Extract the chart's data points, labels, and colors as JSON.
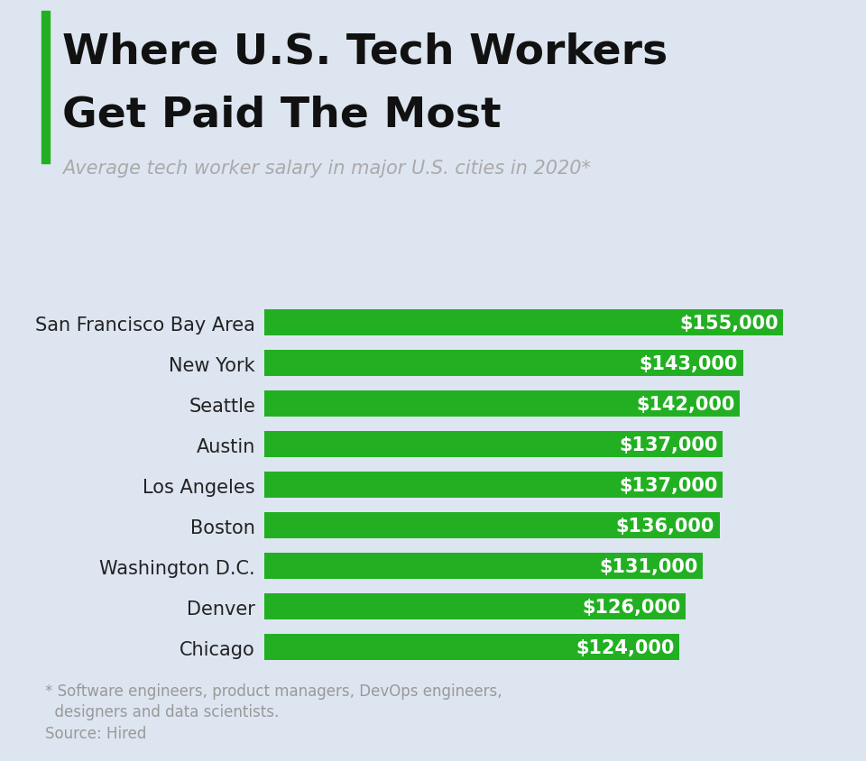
{
  "title_line1": "Where U.S. Tech Workers",
  "title_line2": "Get Paid The Most",
  "subtitle": "Average tech worker salary in major U.S. cities in 2020*",
  "categories": [
    "San Francisco Bay Area",
    "New York",
    "Seattle",
    "Austin",
    "Los Angeles",
    "Boston",
    "Washington D.C.",
    "Denver",
    "Chicago"
  ],
  "values": [
    155000,
    143000,
    142000,
    137000,
    137000,
    136000,
    131000,
    126000,
    124000
  ],
  "labels": [
    "$155,000",
    "$143,000",
    "$142,000",
    "$137,000",
    "$137,000",
    "$136,000",
    "$131,000",
    "$126,000",
    "$124,000"
  ],
  "bar_color": "#22b022",
  "background_color": "#dde5f0",
  "title_color": "#111111",
  "subtitle_color": "#aaaaaa",
  "label_color": "#ffffff",
  "category_color": "#222222",
  "footnote_color": "#999999",
  "accent_bar_color": "#22b022",
  "footnote_line1": "* Software engineers, product managers, DevOps engineers,",
  "footnote_line2": "  designers and data scientists.",
  "footnote_line3": "Source: Hired",
  "title_fontsize": 34,
  "subtitle_fontsize": 15,
  "category_fontsize": 15,
  "label_fontsize": 15,
  "footnote_fontsize": 12
}
